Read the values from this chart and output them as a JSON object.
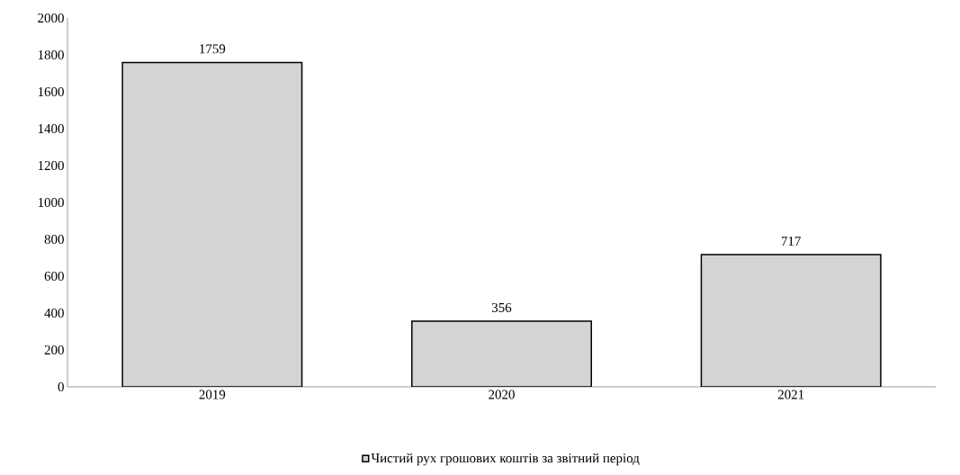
{
  "chart_data": {
    "type": "bar",
    "categories": [
      "2019",
      "2020",
      "2021"
    ],
    "series": [
      {
        "name": "Чистий рух грошових коштів за звітний період",
        "color": "#d4d4d4",
        "values": [
          1759,
          356,
          717
        ]
      }
    ],
    "ylim": [
      0,
      2000
    ],
    "yticks": [
      0,
      200,
      400,
      600,
      800,
      1000,
      1200,
      1400,
      1600,
      1800,
      2000
    ],
    "data_labels": true,
    "legend": "bottom"
  }
}
